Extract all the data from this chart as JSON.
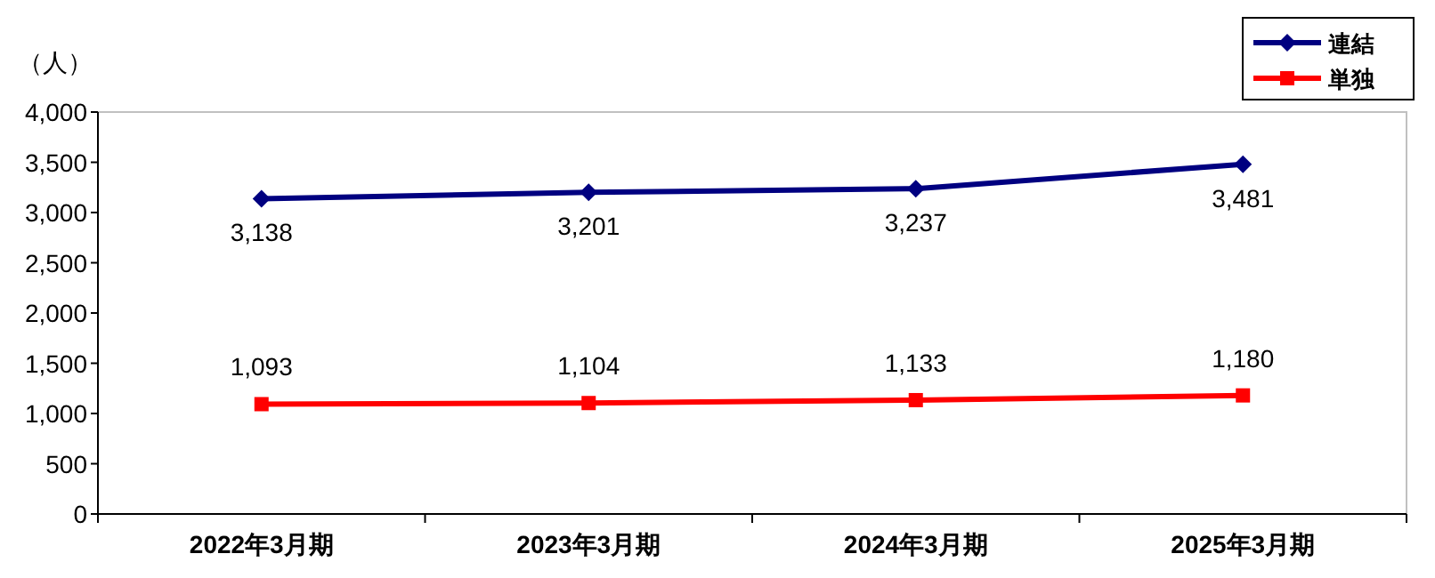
{
  "chart_data": {
    "type": "line",
    "ylabel": "（人）",
    "categories": [
      "2022年3月期",
      "2023年3月期",
      "2024年3月期",
      "2025年3月期"
    ],
    "series": [
      {
        "name": "連結",
        "color": "#000080",
        "marker": "diamond",
        "values": [
          3138,
          3201,
          3237,
          3481
        ],
        "value_labels": [
          "3,138",
          "3,201",
          "3,237",
          "3,481"
        ]
      },
      {
        "name": "単独",
        "color": "#ff0000",
        "marker": "square",
        "values": [
          1093,
          1104,
          1133,
          1180
        ],
        "value_labels": [
          "1,093",
          "1,104",
          "1,133",
          "1,180"
        ]
      }
    ],
    "ylim": [
      0,
      4000
    ],
    "yticks": [
      {
        "value": 0,
        "label": "0"
      },
      {
        "value": 500,
        "label": "500"
      },
      {
        "value": 1000,
        "label": "1,000"
      },
      {
        "value": 1500,
        "label": "1,500"
      },
      {
        "value": 2000,
        "label": "2,000"
      },
      {
        "value": 2500,
        "label": "2,500"
      },
      {
        "value": 3000,
        "label": "3,000"
      },
      {
        "value": 3500,
        "label": "3,500"
      },
      {
        "value": 4000,
        "label": "4,000"
      }
    ],
    "grid": false,
    "legend": "top right"
  }
}
